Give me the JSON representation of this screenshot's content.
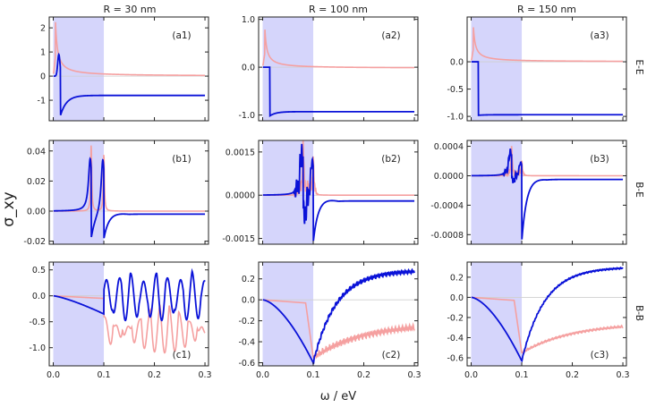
{
  "colors": {
    "blue": "#0a12d8",
    "pink": "#f5a0a0",
    "shade": "#d5d5fb",
    "zero": "#cfcfcf"
  },
  "chart_data": {
    "type": "line",
    "title": "",
    "ylabel": "σ_xy",
    "xlabel": "ω / eV",
    "x_range": [
      0,
      0.3
    ],
    "x_ticks": [
      "0.0",
      "0.1",
      "0.2",
      "0.3"
    ],
    "shaded_region": [
      0,
      0.1
    ],
    "column_titles": [
      "R = 30 nm",
      "R = 100 nm",
      "R = 150 nm"
    ],
    "row_labels": [
      "E-E",
      "B-E",
      "B-B"
    ],
    "series_names": [
      "blue curve",
      "pink curve"
    ],
    "panels": [
      {
        "id": "a1",
        "label": "(a1)",
        "kind": "EE",
        "ylim": [
          -1.85,
          2.45
        ],
        "yticks": [
          -1,
          0,
          1,
          2
        ],
        "ytick_labels": [
          "-1",
          "0",
          "1",
          "2"
        ],
        "blue": {
          "peak": 0.9,
          "min": -1.65,
          "final": -0.8
        },
        "pink": {
          "peak": 2.55,
          "tail": 0.0
        }
      },
      {
        "id": "a2",
        "label": "(a2)",
        "kind": "EE",
        "ylim": [
          -1.12,
          1.05
        ],
        "yticks": [
          -1,
          0,
          1
        ],
        "ytick_labels": [
          "-1.0",
          "0.0",
          "1.0"
        ],
        "blue": {
          "peak": 0.0,
          "min": -1.02,
          "final": -0.93
        },
        "pink": {
          "peak": 0.9,
          "tail": -0.02
        }
      },
      {
        "id": "a3",
        "label": "(a3)",
        "kind": "EE",
        "ylim": [
          -1.08,
          0.82
        ],
        "yticks": [
          -1,
          -0.5,
          0
        ],
        "ytick_labels": [
          "-1.0",
          "-0.5",
          "0.0"
        ],
        "blue": {
          "peak": 0.0,
          "min": -0.98,
          "final": -0.97
        },
        "pink": {
          "peak": 0.72,
          "tail": 0.0
        }
      },
      {
        "id": "b1",
        "label": "(b1)",
        "kind": "BE",
        "ylim": [
          -0.022,
          0.047
        ],
        "yticks": [
          -0.02,
          0,
          0.02,
          0.04
        ],
        "ytick_labels": [
          "-0.02",
          "0.00",
          "0.02",
          "0.04"
        ],
        "resonances": [
          0.075,
          0.1
        ],
        "blue_amp": [
          0.034,
          0.036
        ],
        "blue_neg": [
          -0.019,
          -0.017
        ],
        "pink_amp": [
          0.044,
          0.038
        ],
        "blue_tail": -0.002,
        "noise": 0
      },
      {
        "id": "b2",
        "label": "(b2)",
        "kind": "BE",
        "ylim": [
          -0.0017,
          0.0019
        ],
        "yticks": [
          -0.0015,
          0,
          0.0015
        ],
        "ytick_labels": [
          "-0.0015",
          "0.0000",
          "0.0015"
        ],
        "resonances": [
          0.08,
          0.1
        ],
        "blue_amp": [
          0.0016,
          0.0014
        ],
        "blue_neg": [
          -0.001,
          -0.0015
        ],
        "pink_amp": [
          0.0017,
          0.0013
        ],
        "blue_tail": -0.0002,
        "noise": 0.0007
      },
      {
        "id": "b3",
        "label": "(b3)",
        "kind": "BE",
        "ylim": [
          -0.00093,
          0.00048
        ],
        "yticks": [
          -0.0008,
          -0.0004,
          0,
          0.0004
        ],
        "ytick_labels": [
          "-0.0008",
          "-0.0004",
          "0.0000",
          "0.0004"
        ],
        "resonances": [
          0.08,
          0.1
        ],
        "blue_amp": [
          0.00035,
          0.0002
        ],
        "blue_neg": [
          -0.0001,
          -0.00088
        ],
        "pink_amp": [
          0.00038,
          0.0002
        ],
        "blue_tail": -5e-05,
        "noise": 8e-05
      },
      {
        "id": "c1",
        "label": "(c1)",
        "kind": "BB1",
        "ylim": [
          -1.35,
          0.65
        ],
        "yticks": [
          -1,
          -0.5,
          0,
          0.5
        ],
        "ytick_labels": [
          "-1.0",
          "-0.5",
          "0.0",
          "0.5"
        ]
      },
      {
        "id": "c2",
        "label": "(c2)",
        "kind": "BB",
        "ylim": [
          -0.63,
          0.36
        ],
        "yticks": [
          -0.6,
          -0.4,
          -0.2,
          0,
          0.2
        ],
        "ytick_labels": [
          "-0.6",
          "-0.4",
          "-0.2",
          "0.0",
          "0.2"
        ],
        "blue": {
          "min": -0.6,
          "final": 0.28
        },
        "pink": {
          "min": -0.55,
          "final": -0.22
        },
        "noise": 0.02
      },
      {
        "id": "c3",
        "label": "(c3)",
        "kind": "BB",
        "ylim": [
          -0.68,
          0.35
        ],
        "yticks": [
          -0.6,
          -0.4,
          -0.2,
          0,
          0.2
        ],
        "ytick_labels": [
          "-0.6",
          "-0.4",
          "-0.2",
          "0.0",
          "0.2"
        ],
        "blue": {
          "min": -0.63,
          "final": 0.3
        },
        "pink": {
          "min": -0.55,
          "final": -0.25
        },
        "noise": 0.008
      }
    ]
  }
}
